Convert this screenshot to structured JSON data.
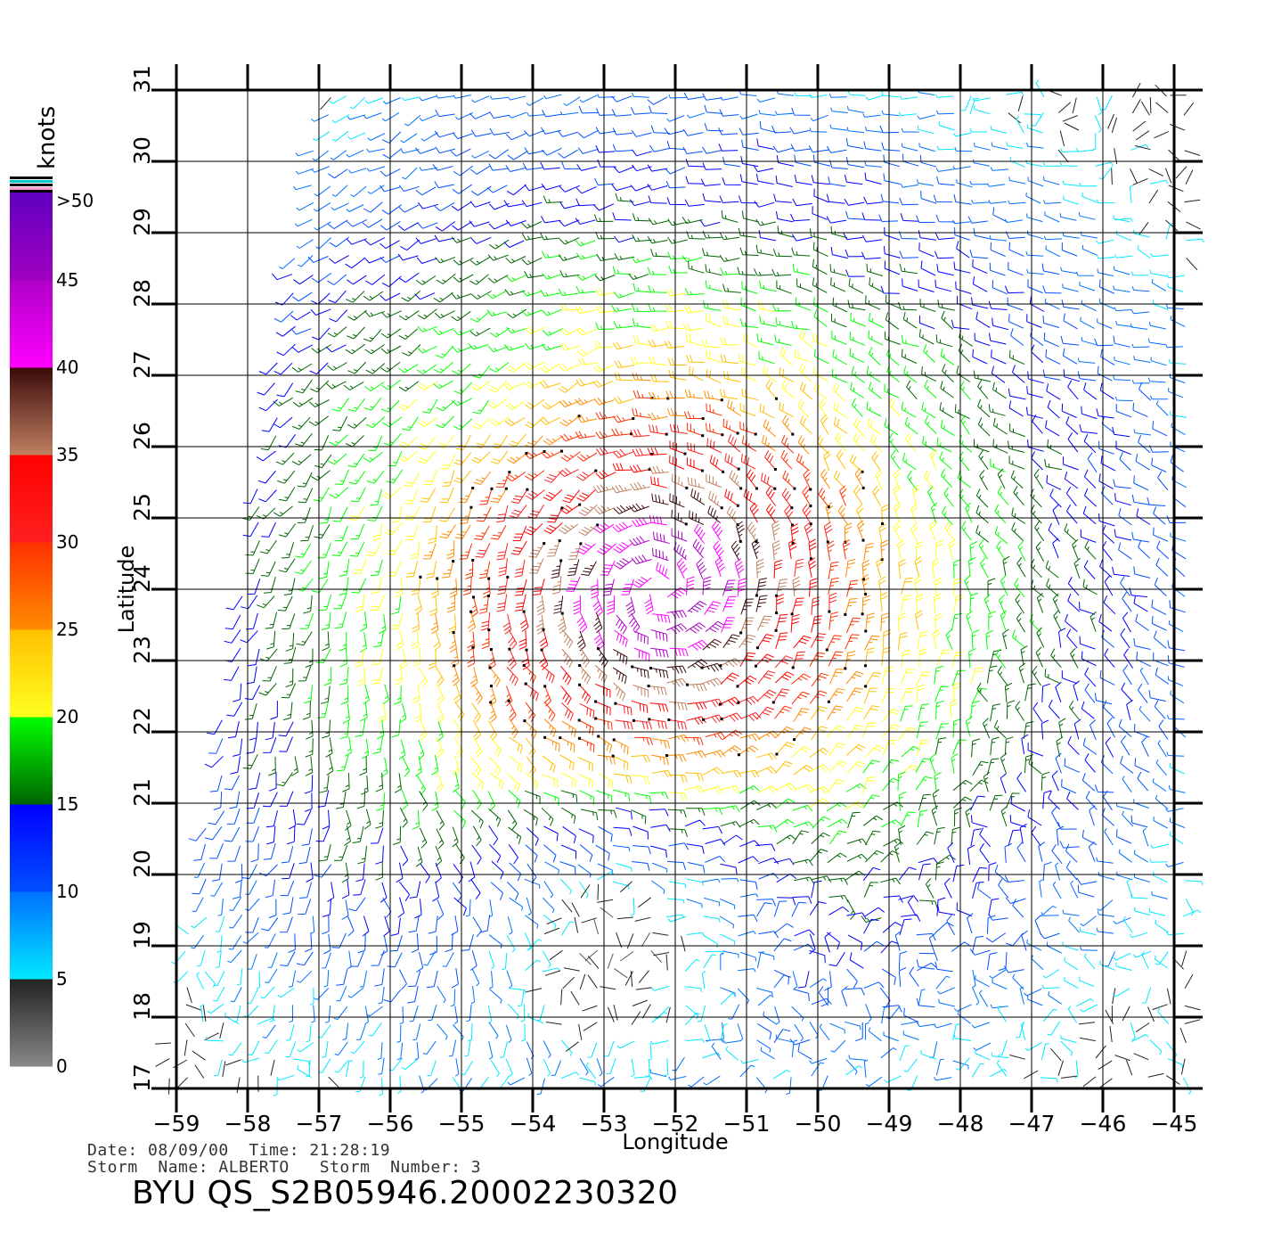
{
  "map": {
    "xlabel": "Longitude",
    "ylabel": "Latitude",
    "lon_range": [
      -59,
      -45
    ],
    "lat_range": [
      17,
      31
    ],
    "lon_ticks": [
      "−59",
      "−58",
      "−57",
      "−56",
      "−55",
      "−54",
      "−53",
      "−52",
      "−51",
      "−50",
      "−49",
      "−48",
      "−47",
      "−46",
      "−45"
    ],
    "lat_ticks": [
      "17",
      "18",
      "19",
      "20",
      "21",
      "22",
      "23",
      "24",
      "25",
      "26",
      "27",
      "28",
      "29",
      "30",
      "31"
    ],
    "storm_center": {
      "lon": -52.2,
      "lat": 24.0
    }
  },
  "colorbar": {
    "unit_label": "knots",
    "labels": [
      ">50",
      "45",
      "40",
      "35",
      "30",
      "25",
      "20",
      "15",
      "10",
      "5",
      "0"
    ],
    "bands": [
      {
        "from": 0,
        "to": 5,
        "colors": [
          "#888888",
          "#222222"
        ]
      },
      {
        "from": 5,
        "to": 10,
        "colors": [
          "#00e8ff",
          "#0070ff"
        ]
      },
      {
        "from": 10,
        "to": 15,
        "colors": [
          "#0050ff",
          "#0000ff"
        ]
      },
      {
        "from": 15,
        "to": 20,
        "colors": [
          "#006400",
          "#00ff00"
        ]
      },
      {
        "from": 20,
        "to": 25,
        "colors": [
          "#ffff20",
          "#ffc000"
        ]
      },
      {
        "from": 25,
        "to": 30,
        "colors": [
          "#ff8c00",
          "#ff3000"
        ]
      },
      {
        "from": 30,
        "to": 35,
        "colors": [
          "#ff2020",
          "#ff0000"
        ]
      },
      {
        "from": 35,
        "to": 40,
        "colors": [
          "#c08060",
          "#3a0a0a"
        ]
      },
      {
        "from": 40,
        "to": 45,
        "colors": [
          "#ff00ff",
          "#b000c8"
        ]
      },
      {
        "from": 45,
        "to": 50,
        "colors": [
          "#a000c0",
          "#6000c0"
        ]
      }
    ]
  },
  "info": {
    "line1": "Date: 08/09/00  Time: 21:28:19",
    "line2": "Storm  Name: ALBERTO   Storm  Number: 3",
    "product_id": "BYU  QS_S2B05946.20002230320"
  }
}
